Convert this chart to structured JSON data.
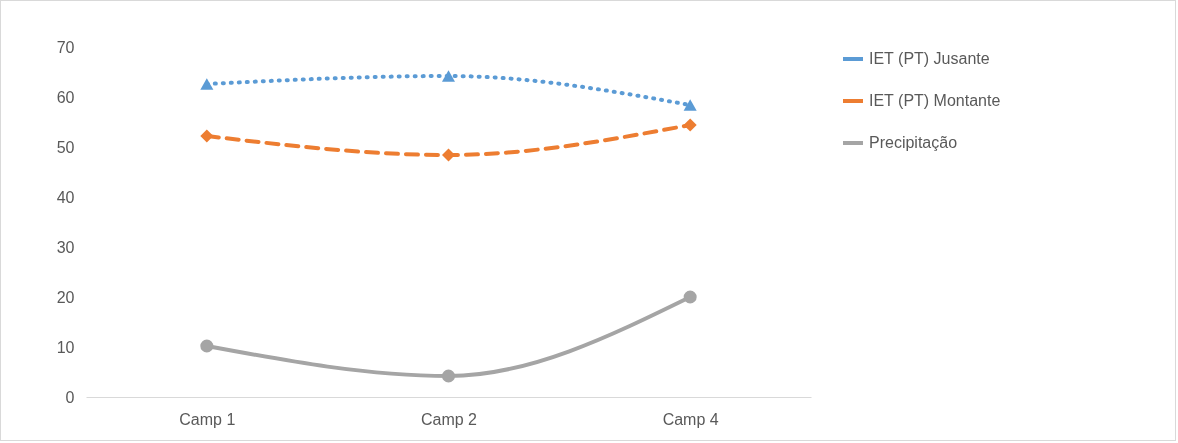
{
  "chart_data": {
    "type": "line",
    "categories": [
      "Camp 1",
      "Camp 2",
      "Camp 4"
    ],
    "series": [
      {
        "name": "IET (PT) Jusante",
        "color": "#5b9bd5",
        "values": [
          62.6,
          64.2,
          58.4
        ],
        "marker": "triangle",
        "line_style": "dotted"
      },
      {
        "name": "IET (PT) Montante",
        "color": "#ed7d31",
        "values": [
          52.2,
          48.4,
          54.4
        ],
        "marker": "diamond",
        "line_style": "dashed"
      },
      {
        "name": "Precipitação",
        "color": "#a5a5a5",
        "values": [
          10.2,
          4.2,
          20
        ],
        "marker": "circle",
        "line_style": "solid"
      }
    ],
    "ylim": [
      0,
      70
    ],
    "yticks": [
      0,
      10,
      20,
      30,
      40,
      50,
      60,
      70
    ],
    "grid": false,
    "legend": "right"
  }
}
